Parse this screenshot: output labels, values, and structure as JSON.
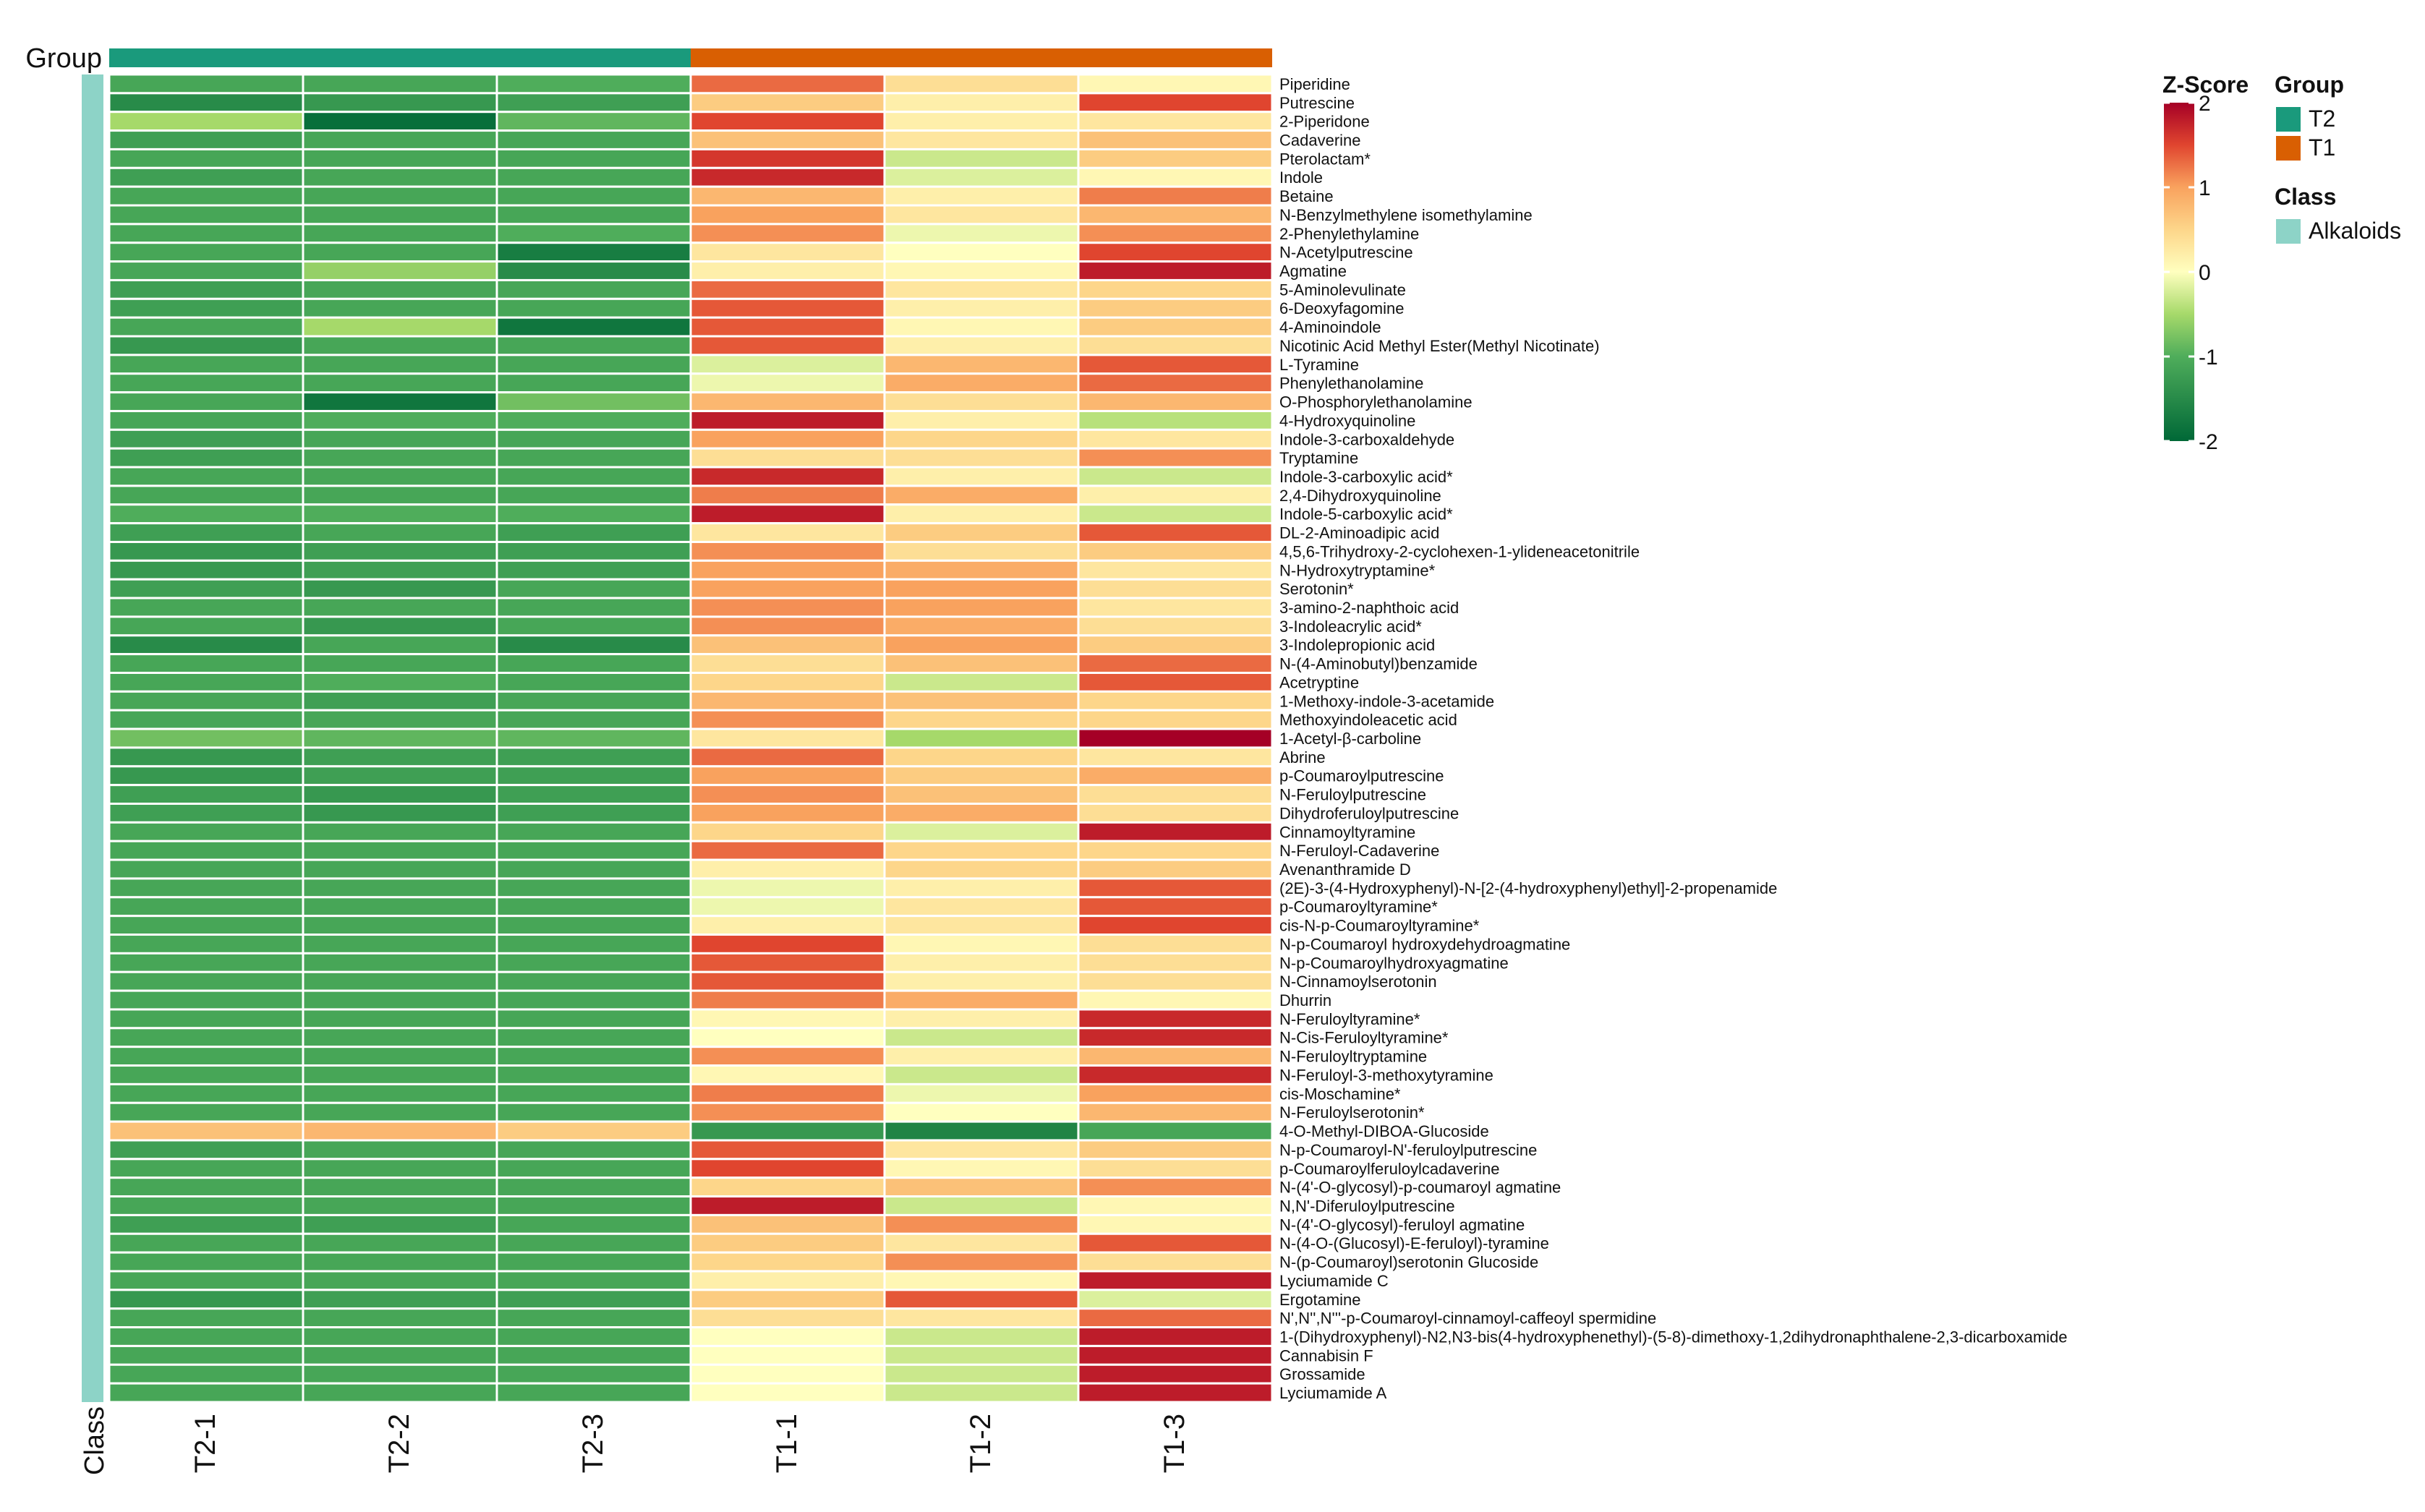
{
  "chart_data": {
    "type": "heatmap",
    "title": "",
    "columns": [
      "T2-1",
      "T2-2",
      "T2-3",
      "T1-1",
      "T1-2",
      "T1-3"
    ],
    "column_groups": [
      "T2",
      "T2",
      "T2",
      "T1",
      "T1",
      "T1"
    ],
    "rows": [
      "Piperidine",
      "Putrescine",
      "2-Piperidone",
      "Cadaverine",
      "Pterolactam*",
      "Indole",
      "Betaine",
      "N-Benzylmethylene isomethylamine",
      "2-Phenylethylamine",
      "N-Acetylputrescine",
      "Agmatine",
      "5-Aminolevulinate",
      "6-Deoxyfagomine",
      "4-Aminoindole",
      "Nicotinic Acid Methyl Ester(Methyl Nicotinate)",
      "L-Tyramine",
      "Phenylethanolamine",
      "O-Phosphorylethanolamine",
      "4-Hydroxyquinoline",
      "Indole-3-carboxaldehyde",
      "Tryptamine",
      "Indole-3-carboxylic acid*",
      "2,4-Dihydroxyquinoline",
      "Indole-5-carboxylic acid*",
      "DL-2-Aminoadipic acid",
      "4,5,6-Trihydroxy-2-cyclohexen-1-ylideneacetonitrile",
      "N-Hydroxytryptamine*",
      "Serotonin*",
      "3-amino-2-naphthoic acid",
      "3-Indoleacrylic acid*",
      "3-Indolepropionic acid",
      "N-(4-Aminobutyl)benzamide",
      "Acetryptine",
      "1-Methoxy-indole-3-acetamide",
      "Methoxyindoleacetic acid",
      "1-Acetyl-β-carboline",
      "Abrine",
      "p-Coumaroylputrescine",
      "N-Feruloylputrescine",
      "Dihydroferuloylputrescine",
      "Cinnamoyltyramine",
      "N-Feruloyl-Cadaverine",
      "Avenanthramide D",
      "(2E)-3-(4-Hydroxyphenyl)-N-[2-(4-hydroxyphenyl)ethyl]-2-propenamide",
      "p-Coumaroyltyramine*",
      "cis-N-p-Coumaroyltyramine*",
      "N-p-Coumaroyl hydroxydehydroagmatine",
      "N-p-Coumaroylhydroxyagmatine",
      "N-Cinnamoylserotonin",
      "Dhurrin",
      "N-Feruloyltyramine*",
      "N-Cis-Feruloyltyramine*",
      "N-Feruloyltryptamine",
      "N-Feruloyl-3-methoxytyramine",
      "cis-Moschamine*",
      "N-Feruloylserotonin*",
      "4-O-Methyl-DIBOA-Glucoside",
      "N-p-Coumaroyl-N'-feruloylputrescine",
      "p-Coumaroylferuloylcadaverine",
      "N-(4'-O-glycosyl)-p-coumaroyl agmatine",
      "N,N'-Diferuloylputrescine",
      "N-(4'-O-glycosyl)-feruloyl agmatine",
      "N-(4-O-(Glucosyl)-E-feruloyl)-tyramine",
      "N-(p-Coumaroyl)serotonin Glucoside",
      "Lyciumamide C",
      "Ergotamine",
      "N',N'',N'''-p-Coumaroyl-cinnamoyl-caffeoyl spermidine",
      "1-(Dihydroxyphenyl)-N2,N3-bis(4-hydroxyphenethyl)-(5-8)-dimethoxy-1,2dihydronaphthalene-2,3-dicarboxamide",
      "Cannabisin F",
      "Grossamide",
      "Lyciumamide A"
    ],
    "z_scores": [
      [
        -1.1,
        -1.1,
        -1.0,
        1.3,
        0.4,
        0.1
      ],
      [
        -1.5,
        -1.3,
        -1.2,
        0.6,
        0.2,
        1.5
      ],
      [
        -0.5,
        -1.9,
        -0.9,
        1.5,
        0.2,
        0.3
      ],
      [
        -1.2,
        -1.1,
        -1.1,
        0.7,
        0.3,
        0.7
      ],
      [
        -1.1,
        -1.1,
        -1.1,
        1.6,
        -0.3,
        0.6
      ],
      [
        -1.2,
        -1.1,
        -1.1,
        1.7,
        -0.2,
        0.1
      ],
      [
        -1.1,
        -1.1,
        -1.1,
        0.8,
        0.2,
        1.2
      ],
      [
        -1.1,
        -1.1,
        -1.1,
        1.0,
        0.3,
        0.8
      ],
      [
        -1.1,
        -1.1,
        -1.0,
        1.1,
        -0.1,
        1.1
      ],
      [
        -1.1,
        -1.1,
        -1.7,
        0.3,
        0.0,
        1.5
      ],
      [
        -1.1,
        -0.6,
        -1.5,
        0.2,
        0.1,
        1.8
      ],
      [
        -1.2,
        -1.1,
        -1.1,
        1.3,
        0.3,
        0.5
      ],
      [
        -1.2,
        -1.1,
        -1.1,
        1.4,
        0.2,
        0.6
      ],
      [
        -1.1,
        -0.5,
        -1.8,
        1.4,
        0.1,
        0.6
      ],
      [
        -1.3,
        -1.1,
        -1.1,
        1.4,
        0.2,
        0.4
      ],
      [
        -1.1,
        -1.1,
        -1.1,
        -0.2,
        0.8,
        1.4
      ],
      [
        -1.1,
        -1.1,
        -1.1,
        -0.1,
        0.9,
        1.3
      ],
      [
        -1.1,
        -1.8,
        -0.8,
        0.8,
        0.4,
        0.8
      ],
      [
        -1.1,
        -1.0,
        -1.0,
        1.8,
        0.2,
        -0.4
      ],
      [
        -1.2,
        -1.1,
        -1.1,
        1.0,
        0.5,
        0.3
      ],
      [
        -1.2,
        -1.1,
        -1.1,
        0.4,
        0.4,
        1.1
      ],
      [
        -1.1,
        -1.1,
        -1.1,
        1.7,
        0.2,
        -0.3
      ],
      [
        -1.1,
        -1.1,
        -1.1,
        1.2,
        0.9,
        0.2
      ],
      [
        -1.0,
        -1.0,
        -1.0,
        1.8,
        0.2,
        -0.3
      ],
      [
        -1.2,
        -1.1,
        -1.2,
        0.3,
        0.6,
        1.4
      ],
      [
        -1.3,
        -1.2,
        -1.2,
        1.1,
        0.4,
        0.6
      ],
      [
        -1.3,
        -1.2,
        -1.2,
        1.0,
        0.9,
        0.3
      ],
      [
        -1.2,
        -1.3,
        -1.1,
        1.0,
        1.0,
        0.4
      ],
      [
        -1.1,
        -1.1,
        -1.1,
        1.1,
        1.0,
        0.3
      ],
      [
        -1.1,
        -1.3,
        -1.1,
        1.1,
        0.9,
        0.4
      ],
      [
        -1.5,
        -1.1,
        -1.5,
        0.7,
        1.0,
        0.6
      ],
      [
        -1.1,
        -1.1,
        -1.1,
        0.4,
        0.7,
        1.3
      ],
      [
        -1.1,
        -1.0,
        -1.1,
        0.5,
        -0.3,
        1.4
      ],
      [
        -1.1,
        -1.2,
        -1.1,
        0.8,
        0.7,
        0.5
      ],
      [
        -1.1,
        -1.1,
        -1.1,
        1.1,
        0.5,
        0.5
      ],
      [
        -0.8,
        -0.9,
        -0.9,
        0.3,
        -0.5,
        2.0
      ],
      [
        -1.3,
        -1.2,
        -1.2,
        1.3,
        0.5,
        0.3
      ],
      [
        -1.3,
        -1.2,
        -1.2,
        1.0,
        0.6,
        0.9
      ],
      [
        -1.2,
        -1.3,
        -1.2,
        1.1,
        0.7,
        0.4
      ],
      [
        -1.2,
        -1.3,
        -1.2,
        1.0,
        0.9,
        0.4
      ],
      [
        -1.1,
        -1.1,
        -1.1,
        0.5,
        -0.2,
        1.8
      ],
      [
        -1.1,
        -1.1,
        -1.1,
        1.3,
        0.5,
        0.5
      ],
      [
        -1.1,
        -1.1,
        -1.1,
        0.2,
        0.5,
        0.6
      ],
      [
        -1.1,
        -1.1,
        -1.1,
        -0.1,
        0.2,
        1.4
      ],
      [
        -1.1,
        -1.1,
        -1.1,
        -0.1,
        0.3,
        1.4
      ],
      [
        -1.1,
        -1.1,
        -1.1,
        0.2,
        0.3,
        1.5
      ],
      [
        -1.1,
        -1.1,
        -1.1,
        1.5,
        0.1,
        0.4
      ],
      [
        -1.1,
        -1.1,
        -1.1,
        1.4,
        0.2,
        0.4
      ],
      [
        -1.1,
        -1.1,
        -1.1,
        1.4,
        0.2,
        0.4
      ],
      [
        -1.1,
        -1.1,
        -1.1,
        1.2,
        0.9,
        0.1
      ],
      [
        -1.1,
        -1.1,
        -1.1,
        0.1,
        0.2,
        1.7
      ],
      [
        -1.1,
        -1.1,
        -1.1,
        0.0,
        -0.3,
        1.7
      ],
      [
        -1.1,
        -1.1,
        -1.1,
        1.1,
        0.2,
        0.8
      ],
      [
        -1.1,
        -1.1,
        -1.1,
        0.1,
        -0.3,
        1.7
      ],
      [
        -1.1,
        -1.1,
        -1.1,
        1.2,
        -0.1,
        1.0
      ],
      [
        -1.1,
        -1.1,
        -1.1,
        1.1,
        0.0,
        0.8
      ],
      [
        0.7,
        0.8,
        0.6,
        -1.3,
        -1.6,
        -1.1
      ],
      [
        -1.2,
        -1.1,
        -1.1,
        1.4,
        0.3,
        0.6
      ],
      [
        -1.1,
        -1.1,
        -1.1,
        1.5,
        0.1,
        0.4
      ],
      [
        -1.1,
        -1.1,
        -1.1,
        0.5,
        0.7,
        1.1
      ],
      [
        -1.1,
        -1.1,
        -1.1,
        1.8,
        -0.3,
        0.1
      ],
      [
        -1.2,
        -1.2,
        -1.1,
        0.7,
        1.1,
        0.1
      ],
      [
        -1.1,
        -1.1,
        -1.1,
        0.6,
        0.3,
        1.4
      ],
      [
        -1.1,
        -1.1,
        -1.1,
        0.5,
        1.1,
        0.4
      ],
      [
        -1.1,
        -1.1,
        -1.1,
        0.2,
        0.1,
        1.8
      ],
      [
        -1.3,
        -1.2,
        -1.2,
        0.6,
        1.4,
        -0.2
      ],
      [
        -1.1,
        -1.1,
        -1.1,
        0.4,
        0.3,
        1.3
      ],
      [
        -1.1,
        -1.1,
        -1.1,
        0.0,
        -0.3,
        1.8
      ],
      [
        -1.1,
        -1.1,
        -1.1,
        0.0,
        -0.3,
        1.8
      ],
      [
        -1.1,
        -1.1,
        -1.1,
        0.0,
        -0.3,
        1.8
      ],
      [
        -1.1,
        -1.1,
        -1.1,
        0.0,
        -0.3,
        1.8
      ]
    ],
    "color_scale": {
      "title": "Z-Score",
      "ticks": [
        "2",
        "1",
        "0",
        "-1",
        "-2"
      ],
      "range": [
        -2,
        2
      ],
      "stops": [
        {
          "value": -2,
          "color": "#006837"
        },
        {
          "value": -1,
          "color": "#4fad5b"
        },
        {
          "value": -0.5,
          "color": "#a6d96a"
        },
        {
          "value": 0,
          "color": "#ffffbf"
        },
        {
          "value": 0.5,
          "color": "#fdd68a"
        },
        {
          "value": 1,
          "color": "#f9a25e"
        },
        {
          "value": 1.5,
          "color": "#e0452f"
        },
        {
          "value": 2,
          "color": "#a50026"
        }
      ]
    },
    "annotation_labels": {
      "group_label": "Group",
      "class_label": "Class"
    },
    "legend": {
      "position": "right",
      "group_title": "Group",
      "group_items": [
        {
          "label": "T2",
          "color": "#1a9a7c"
        },
        {
          "label": "T1",
          "color": "#d95f02"
        }
      ],
      "class_title": "Class",
      "class_items": [
        {
          "label": "Alkaloids",
          "color": "#8dd3c7"
        }
      ]
    },
    "cell_border_color": "#ffffff"
  }
}
